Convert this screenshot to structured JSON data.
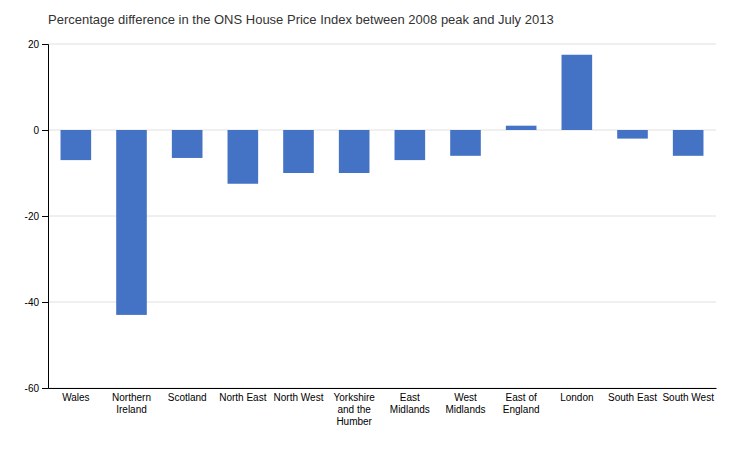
{
  "chart_data": {
    "type": "bar",
    "title": "Percentage difference in the ONS House Price Index between 2008 peak and July 2013",
    "categories": [
      "Wales",
      "Northern\nIreland",
      "Scotland",
      "North East",
      "North West",
      "Yorkshire\nand the\nHumber",
      "East\nMidlands",
      "West\nMidlands",
      "East of\nEngland",
      "London",
      "South East",
      "South West"
    ],
    "values": [
      -7.0,
      -43.0,
      -6.5,
      -12.5,
      -10.0,
      -10.0,
      -7.0,
      -6.0,
      1.0,
      17.5,
      -2.0,
      -6.0
    ],
    "color": "#4472C4",
    "ylim": [
      -60,
      20
    ],
    "yticks": [
      -60,
      -40,
      -20,
      0,
      20
    ],
    "grid": true
  }
}
